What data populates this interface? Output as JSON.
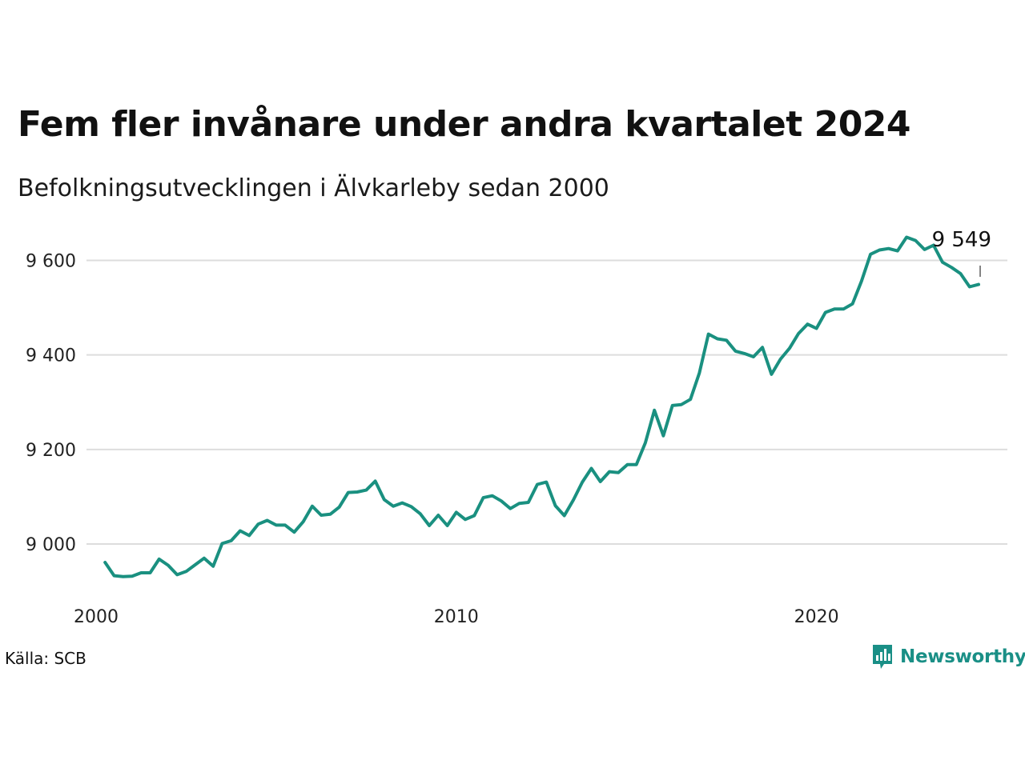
{
  "colors": {
    "line": "#1a9080",
    "grid": "#dddddd",
    "brand": "#1a8f86",
    "text": "#111111"
  },
  "title": "Fem fler invånare under andra kvartalet 2024",
  "subtitle": "Befolkningsutvecklingen i Älvkarleby sedan 2000",
  "source": "Källa: SCB",
  "brand": {
    "name": "Newsworthy",
    "icon": "newsworthy-logo-icon"
  },
  "chart_data": {
    "type": "line",
    "title": "Fem fler invånare under andra kvartalet 2024",
    "subtitle": "Befolkningsutvecklingen i Älvkarleby sedan 2000",
    "xlabel": "",
    "ylabel": "",
    "x_ticks": [
      2000,
      2010,
      2020
    ],
    "y_ticks": [
      9000,
      9200,
      9400,
      9600
    ],
    "y_tick_labels": [
      "9 000",
      "9 200",
      "9 400",
      "9 600"
    ],
    "x_tick_labels": [
      "2000",
      "2010",
      "2020"
    ],
    "xlim": [
      2000,
      2025.75
    ],
    "ylim": [
      8890,
      9690
    ],
    "grid": true,
    "last_label": "9 549",
    "series": [
      {
        "x": [
          2000.25,
          2000.5,
          2000.75,
          2001.0,
          2001.25,
          2001.5,
          2001.75,
          2002.0,
          2002.25,
          2002.5,
          2002.75,
          2003.0,
          2003.25,
          2003.5,
          2003.75,
          2004.0,
          2004.25,
          2004.5,
          2004.75,
          2005.0,
          2005.25,
          2005.5,
          2005.75,
          2006.0,
          2006.25,
          2006.5,
          2006.75,
          2007.0,
          2007.25,
          2007.5,
          2007.75,
          2008.0,
          2008.25,
          2008.5,
          2008.75,
          2009.0,
          2009.25,
          2009.5,
          2009.75,
          2010.0,
          2010.25,
          2010.5,
          2010.75,
          2011.0,
          2011.25,
          2011.5,
          2011.75,
          2012.0,
          2012.25,
          2012.5,
          2012.75,
          2013.0,
          2013.25,
          2013.5,
          2013.75,
          2014.0,
          2014.25,
          2014.5,
          2014.75,
          2015.0,
          2015.25,
          2015.5,
          2015.75,
          2016.0,
          2016.25,
          2016.5,
          2016.75,
          2017.0,
          2017.25,
          2017.5,
          2017.75,
          2018.0,
          2018.25,
          2018.5,
          2018.75,
          2019.0,
          2019.25,
          2019.5,
          2019.75,
          2020.0,
          2020.25,
          2020.5,
          2020.75,
          2021.0,
          2021.25,
          2021.5,
          2021.75,
          2022.0,
          2022.25,
          2022.5,
          2022.75,
          2023.0,
          2023.25,
          2023.5,
          2023.75,
          2024.0,
          2024.25,
          2024.5
        ],
        "values": [
          8961,
          8933,
          8931,
          8932,
          8939,
          8939,
          8968,
          8955,
          8935,
          8942,
          8956,
          8970,
          8953,
          9001,
          9007,
          9028,
          9018,
          9042,
          9050,
          9040,
          9040,
          9025,
          9047,
          9080,
          9061,
          9063,
          9078,
          9109,
          9110,
          9114,
          9133,
          9094,
          9080,
          9087,
          9079,
          9064,
          9039,
          9061,
          9039,
          9067,
          9052,
          9060,
          9098,
          9102,
          9091,
          9075,
          9086,
          9088,
          9126,
          9131,
          9081,
          9060,
          9093,
          9131,
          9160,
          9132,
          9153,
          9151,
          9168,
          9168,
          9214,
          9283,
          9229,
          9293,
          9295,
          9306,
          9362,
          9444,
          9434,
          9431,
          9408,
          9403,
          9396,
          9416,
          9359,
          9391,
          9414,
          9445,
          9465,
          9456,
          9490,
          9497,
          9497,
          9508,
          9556,
          9613,
          9622,
          9625,
          9620,
          9649,
          9642,
          9623,
          9632,
          9596,
          9585,
          9572,
          9544,
          9549
        ]
      }
    ]
  }
}
